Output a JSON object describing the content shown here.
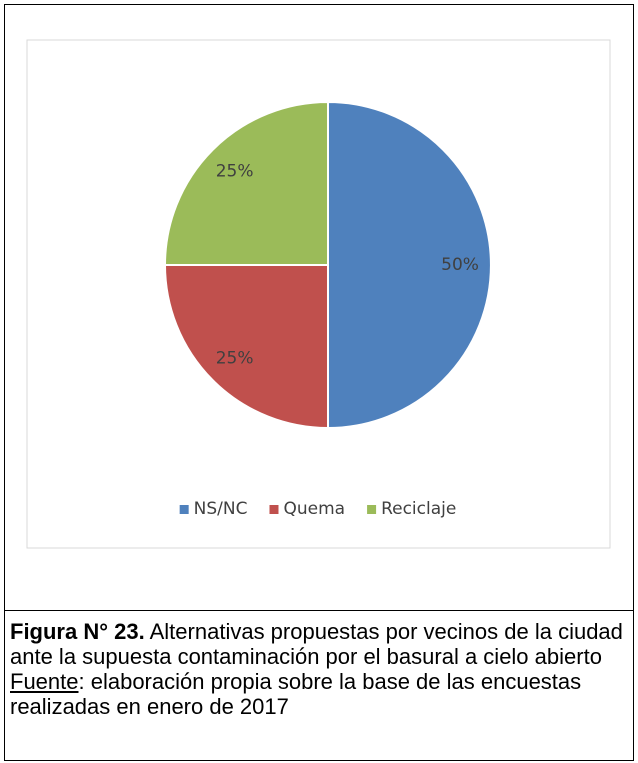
{
  "chart_data": {
    "type": "pie",
    "categories": [
      "NS/NC",
      "Quema",
      "Reciclaje"
    ],
    "values": [
      50,
      25,
      25
    ],
    "value_labels": [
      "50%",
      "25%",
      "25%"
    ],
    "colors": [
      "#4f81bd",
      "#c0504d",
      "#9bbb59"
    ],
    "legend": "bottom"
  },
  "caption": {
    "label": "Figura N° 23.",
    "text": "Alternativas propuestas por vecinos de la ciudad ante la supuesta contaminación por el basural a cielo abierto",
    "source_label": "Fuente",
    "source_text": ": elaboración propia sobre la base de las encuestas realizadas en enero de 2017"
  }
}
